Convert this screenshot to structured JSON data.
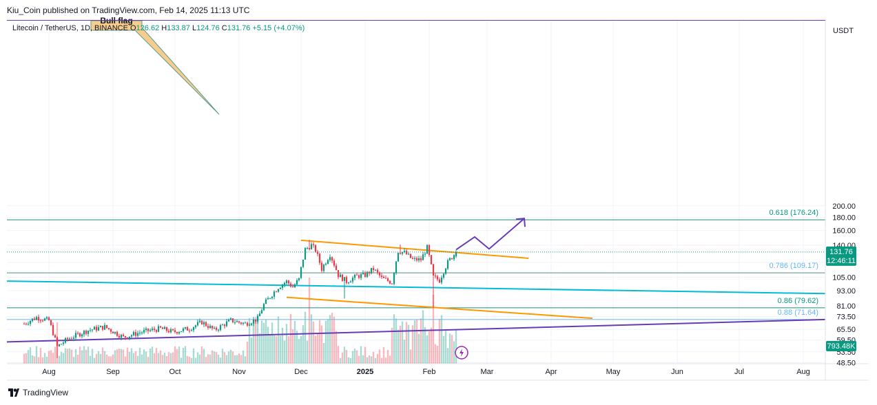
{
  "header": "Kiu_Coin published on TradingView.com, Feb 14, 2025 11:13 UTC",
  "symbol": {
    "name": "Litecoin / TetherUS, 1D, BINANCE",
    "o_label": "O",
    "o": "126.62",
    "h_label": "H",
    "h": "133.87",
    "l_label": "L",
    "l": "124.76",
    "c_label": "C",
    "c": "131.76",
    "change": "+5.15 (+4.07%)"
  },
  "footer": "TradingView",
  "colors": {
    "up": "#089981",
    "down": "#f23645",
    "orange": "#ff9800",
    "cyan": "#00bcd4",
    "purple": "#673ab7",
    "fib_teal": "#089981",
    "fib_blue": "#64b5f6"
  },
  "chart_data": {
    "type": "candlestick",
    "currency": "USDT",
    "y_ticks": [
      "200.00",
      "180.00",
      "160.00",
      "140.00",
      "120.00",
      "105.00",
      "93.00",
      "81.00",
      "73.50",
      "65.50",
      "59.50",
      "53.50",
      "48.50"
    ],
    "x_ticks": [
      "Aug",
      "Sep",
      "Oct",
      "Nov",
      "Dec",
      "2025",
      "Feb",
      "Mar",
      "Apr",
      "May",
      "Jun",
      "Jul",
      "Aug"
    ],
    "last_price": "131.76",
    "countdown": "12:46:11",
    "volume_label": "793.48K",
    "annotation": "Bull flag",
    "fib_levels": [
      {
        "label": "0.618 (176.24)",
        "price": 176.24
      },
      {
        "label": "0.786 (109.17)",
        "price": 109.17
      },
      {
        "label": "0.86 (79.62)",
        "price": 79.62
      },
      {
        "label": "0.88 (71.64)",
        "price": 71.64
      }
    ],
    "price_path": [
      [
        "2024-07-20",
        69
      ],
      [
        "2024-07-26",
        73
      ],
      [
        "2024-08-01",
        71
      ],
      [
        "2024-08-05",
        56
      ],
      [
        "2024-08-10",
        60
      ],
      [
        "2024-08-20",
        65
      ],
      [
        "2024-08-28",
        67
      ],
      [
        "2024-09-06",
        61
      ],
      [
        "2024-09-15",
        64
      ],
      [
        "2024-09-24",
        66
      ],
      [
        "2024-09-30",
        64
      ],
      [
        "2024-10-08",
        66
      ],
      [
        "2024-10-14",
        70
      ],
      [
        "2024-10-20",
        65
      ],
      [
        "2024-10-28",
        71
      ],
      [
        "2024-11-04",
        69
      ],
      [
        "2024-11-10",
        72
      ],
      [
        "2024-11-13",
        82
      ],
      [
        "2024-11-16",
        88
      ],
      [
        "2024-11-20",
        96
      ],
      [
        "2024-11-24",
        101
      ],
      [
        "2024-11-27",
        96
      ],
      [
        "2024-11-30",
        103
      ],
      [
        "2024-12-03",
        135
      ],
      [
        "2024-12-06",
        140
      ],
      [
        "2024-12-08",
        134
      ],
      [
        "2024-12-11",
        113
      ],
      [
        "2024-12-15",
        129
      ],
      [
        "2024-12-19",
        107
      ],
      [
        "2024-12-23",
        101
      ],
      [
        "2024-12-28",
        106
      ],
      [
        "2025-01-01",
        107
      ],
      [
        "2025-01-05",
        113
      ],
      [
        "2025-01-09",
        104
      ],
      [
        "2025-01-14",
        100
      ],
      [
        "2025-01-17",
        133
      ],
      [
        "2025-01-20",
        131
      ],
      [
        "2025-01-24",
        123
      ],
      [
        "2025-01-28",
        123
      ],
      [
        "2025-01-31",
        137
      ],
      [
        "2025-02-03",
        105
      ],
      [
        "2025-02-06",
        102
      ],
      [
        "2025-02-10",
        120
      ],
      [
        "2025-02-14",
        131.76
      ]
    ],
    "lines": [
      {
        "name": "orange-top",
        "from": [
          "2024-12-01",
          146.5
        ],
        "to": [
          "2025-03-21",
          124.5
        ]
      },
      {
        "name": "orange-bottom",
        "from": [
          "2024-11-24",
          87.5
        ],
        "to": [
          "2025-04-21",
          72.4
        ]
      },
      {
        "name": "cyan-support",
        "from": [
          "2024-07-20",
          101.3
        ],
        "to": [
          "2025-08-13",
          90.5
        ]
      },
      {
        "name": "purple-support",
        "from": [
          "2024-07-20",
          58.5
        ],
        "to": [
          "2025-08-13",
          71.6
        ]
      }
    ],
    "projection": [
      [
        "2025-02-14",
        134.5
      ],
      [
        "2025-02-23",
        151
      ],
      [
        "2025-03-02",
        135.5
      ],
      [
        "2025-03-19",
        178.3
      ]
    ]
  }
}
